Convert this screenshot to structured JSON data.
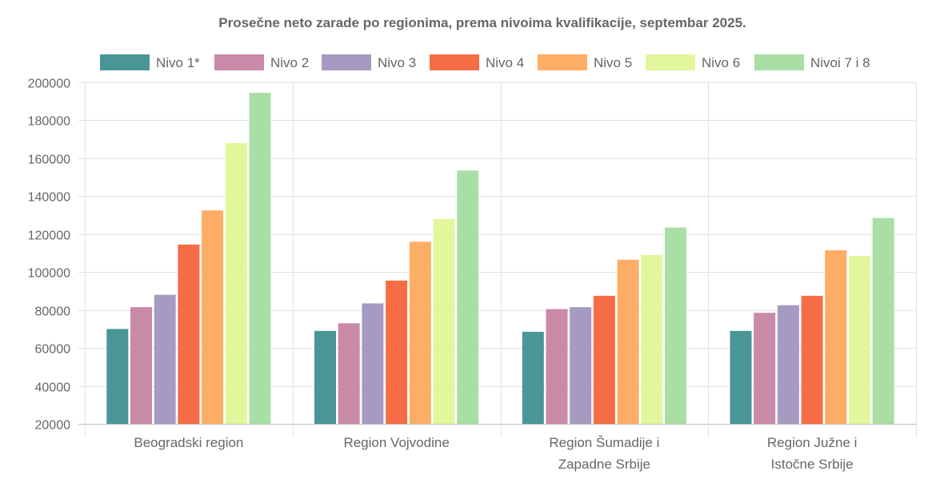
{
  "chart_data": {
    "type": "bar",
    "title": "Prosečne neto zarade po regionima, prema nivoima kvalifikacije, septembar 2025.",
    "categories": [
      [
        "Beogradski region"
      ],
      [
        "Region Vojvodine"
      ],
      [
        "Region Šumadije i",
        "Zapadne Srbije"
      ],
      [
        "Region Južne i",
        "Istočne Srbije"
      ]
    ],
    "ylim": [
      20000,
      200000
    ],
    "yticks": [
      20000,
      40000,
      60000,
      80000,
      100000,
      120000,
      140000,
      160000,
      180000,
      200000
    ],
    "grid": true,
    "legend_position": "top",
    "series": [
      {
        "name": "Nivo 1*",
        "color": "#4a9595",
        "values": [
          70000,
          69000,
          68500,
          69000
        ]
      },
      {
        "name": "Nivo 2",
        "color": "#c98aa7",
        "values": [
          81500,
          73000,
          80500,
          78500
        ]
      },
      {
        "name": "Nivo 3",
        "color": "#a59bc2",
        "values": [
          88000,
          83500,
          81500,
          82500
        ]
      },
      {
        "name": "Nivo 4",
        "color": "#f66d45",
        "values": [
          114500,
          95500,
          87500,
          87500
        ]
      },
      {
        "name": "Nivo 5",
        "color": "#fead66",
        "values": [
          132500,
          116000,
          106500,
          111500
        ]
      },
      {
        "name": "Nivo 6",
        "color": "#e4f69b",
        "values": [
          168000,
          128000,
          109000,
          108500
        ]
      },
      {
        "name": "Nivoi 7 i 8",
        "color": "#a9dfa4",
        "values": [
          194500,
          153500,
          123500,
          128500
        ]
      }
    ]
  }
}
